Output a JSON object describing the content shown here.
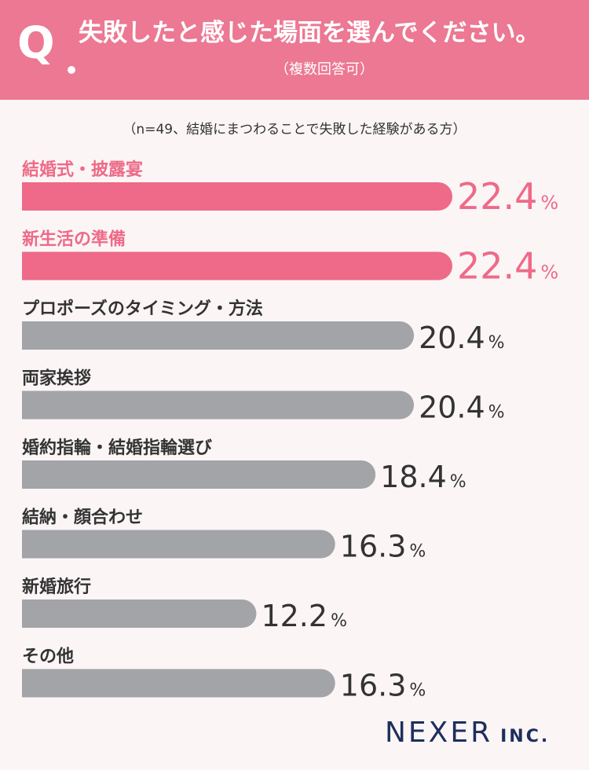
{
  "question": {
    "mark": "Q",
    "text": "失敗したと感じた場面を選んでください。",
    "note": "（複数回答可）"
  },
  "sample_note": "（n=49、結婚にまつわることで失敗した経験がある方）",
  "brand": {
    "name": "NEXER",
    "suffix": "INC."
  },
  "colors": {
    "header": "#ec7893",
    "highlight_bar": "#ee6a88",
    "highlight_text": "#ee6a88",
    "normal_bar": "#a3a4a8",
    "normal_text": "#333333",
    "background": "#fbf5f6",
    "brand": "#1d2f5c"
  },
  "chart_data": {
    "type": "bar",
    "orientation": "horizontal",
    "categories": [
      "結婚式・披露宴",
      "新生活の準備",
      "プロポーズのタイミング・方法",
      "両家挨拶",
      "婚約指輪・結婚指輪選び",
      "結納・顔合わせ",
      "新婚旅行",
      "その他"
    ],
    "values": [
      22.4,
      22.4,
      20.4,
      20.4,
      18.4,
      16.3,
      12.2,
      16.3
    ],
    "value_labels": [
      "22.4",
      "22.4",
      "20.4",
      "20.4",
      "18.4",
      "16.3",
      "12.2",
      "16.3"
    ],
    "unit": "%",
    "highlighted": [
      true,
      true,
      false,
      false,
      false,
      false,
      false,
      false
    ],
    "xlim": [
      0,
      22.4
    ]
  }
}
